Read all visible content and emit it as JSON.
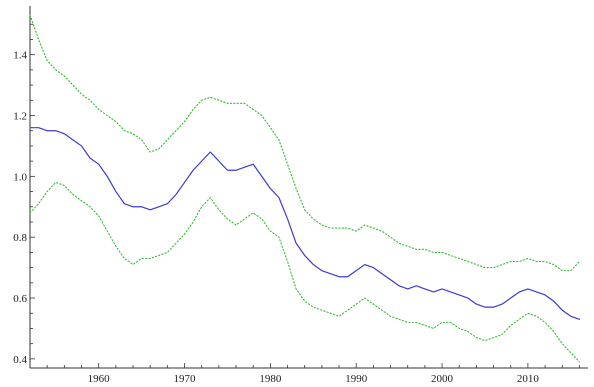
{
  "chart_data": {
    "type": "line",
    "title": "",
    "xlabel": "",
    "ylabel": "",
    "xlim": [
      1952,
      2017
    ],
    "ylim": [
      0.37,
      1.56
    ],
    "grid": false,
    "legend": "none",
    "x_ticks": [
      {
        "value": 1960,
        "label": "1960"
      },
      {
        "value": 1970,
        "label": "1970"
      },
      {
        "value": 1980,
        "label": "1980"
      },
      {
        "value": 1990,
        "label": "1990"
      },
      {
        "value": 2000,
        "label": "2000"
      },
      {
        "value": 2010,
        "label": "2010"
      }
    ],
    "y_ticks": [
      {
        "value": 0.4,
        "label": "0.4"
      },
      {
        "value": 0.6,
        "label": "0.6"
      },
      {
        "value": 0.8,
        "label": "0.8"
      },
      {
        "value": 1.0,
        "label": "1.0"
      },
      {
        "value": 1.2,
        "label": "1.2"
      },
      {
        "value": 1.4,
        "label": "1.4"
      }
    ],
    "series": [
      {
        "color": "#3b3bd8",
        "style": "solid",
        "x": [
          1952,
          1953,
          1954,
          1955,
          1956,
          1957,
          1958,
          1959,
          1960,
          1961,
          1962,
          1963,
          1964,
          1965,
          1966,
          1967,
          1968,
          1969,
          1970,
          1971,
          1972,
          1973,
          1974,
          1975,
          1976,
          1977,
          1978,
          1979,
          1980,
          1981,
          1982,
          1983,
          1984,
          1985,
          1986,
          1987,
          1988,
          1989,
          1990,
          1991,
          1992,
          1993,
          1994,
          1995,
          1996,
          1997,
          1998,
          1999,
          2000,
          2001,
          2002,
          2003,
          2004,
          2005,
          2006,
          2007,
          2008,
          2009,
          2010,
          2011,
          2012,
          2013,
          2014,
          2015,
          2016
        ],
        "y": [
          1.16,
          1.16,
          1.15,
          1.15,
          1.14,
          1.12,
          1.1,
          1.06,
          1.04,
          1.0,
          0.95,
          0.91,
          0.9,
          0.9,
          0.89,
          0.9,
          0.91,
          0.94,
          0.98,
          1.02,
          1.05,
          1.08,
          1.05,
          1.02,
          1.02,
          1.03,
          1.04,
          1.0,
          0.96,
          0.93,
          0.86,
          0.78,
          0.74,
          0.71,
          0.69,
          0.68,
          0.67,
          0.67,
          0.69,
          0.71,
          0.7,
          0.68,
          0.66,
          0.64,
          0.63,
          0.64,
          0.63,
          0.62,
          0.63,
          0.62,
          0.61,
          0.6,
          0.58,
          0.57,
          0.57,
          0.58,
          0.6,
          0.62,
          0.63,
          0.62,
          0.61,
          0.59,
          0.56,
          0.54,
          0.53
        ]
      },
      {
        "color": "#33bb33",
        "style": "dotted",
        "x": [
          1952,
          1953,
          1954,
          1955,
          1956,
          1957,
          1958,
          1959,
          1960,
          1961,
          1962,
          1963,
          1964,
          1965,
          1966,
          1967,
          1968,
          1969,
          1970,
          1971,
          1972,
          1973,
          1974,
          1975,
          1976,
          1977,
          1978,
          1979,
          1980,
          1981,
          1982,
          1983,
          1984,
          1985,
          1986,
          1987,
          1988,
          1989,
          1990,
          1991,
          1992,
          1993,
          1994,
          1995,
          1996,
          1997,
          1998,
          1999,
          2000,
          2001,
          2002,
          2003,
          2004,
          2005,
          2006,
          2007,
          2008,
          2009,
          2010,
          2011,
          2012,
          2013,
          2014,
          2015,
          2016
        ],
        "y": [
          1.53,
          1.45,
          1.38,
          1.35,
          1.33,
          1.3,
          1.27,
          1.25,
          1.22,
          1.2,
          1.18,
          1.15,
          1.14,
          1.12,
          1.08,
          1.09,
          1.12,
          1.15,
          1.18,
          1.22,
          1.25,
          1.26,
          1.25,
          1.24,
          1.24,
          1.24,
          1.22,
          1.2,
          1.16,
          1.12,
          1.04,
          0.96,
          0.89,
          0.86,
          0.84,
          0.83,
          0.83,
          0.83,
          0.82,
          0.84,
          0.83,
          0.82,
          0.8,
          0.78,
          0.77,
          0.76,
          0.76,
          0.75,
          0.75,
          0.74,
          0.73,
          0.72,
          0.71,
          0.7,
          0.7,
          0.71,
          0.72,
          0.72,
          0.73,
          0.72,
          0.72,
          0.71,
          0.69,
          0.69,
          0.72
        ]
      },
      {
        "color": "#33bb33",
        "style": "dotted",
        "x": [
          1952,
          1953,
          1954,
          1955,
          1956,
          1957,
          1958,
          1959,
          1960,
          1961,
          1962,
          1963,
          1964,
          1965,
          1966,
          1967,
          1968,
          1969,
          1970,
          1971,
          1972,
          1973,
          1974,
          1975,
          1976,
          1977,
          1978,
          1979,
          1980,
          1981,
          1982,
          1983,
          1984,
          1985,
          1986,
          1987,
          1988,
          1989,
          1990,
          1991,
          1992,
          1993,
          1994,
          1995,
          1996,
          1997,
          1998,
          1999,
          2000,
          2001,
          2002,
          2003,
          2004,
          2005,
          2006,
          2007,
          2008,
          2009,
          2010,
          2011,
          2012,
          2013,
          2014,
          2015,
          2016
        ],
        "y": [
          0.88,
          0.91,
          0.95,
          0.98,
          0.97,
          0.94,
          0.92,
          0.9,
          0.87,
          0.82,
          0.77,
          0.73,
          0.71,
          0.73,
          0.73,
          0.74,
          0.75,
          0.78,
          0.81,
          0.85,
          0.9,
          0.93,
          0.89,
          0.86,
          0.84,
          0.86,
          0.88,
          0.86,
          0.82,
          0.8,
          0.72,
          0.63,
          0.59,
          0.57,
          0.56,
          0.55,
          0.54,
          0.56,
          0.58,
          0.6,
          0.58,
          0.56,
          0.54,
          0.53,
          0.52,
          0.52,
          0.51,
          0.5,
          0.52,
          0.52,
          0.5,
          0.49,
          0.47,
          0.46,
          0.47,
          0.48,
          0.51,
          0.53,
          0.55,
          0.54,
          0.52,
          0.49,
          0.45,
          0.42,
          0.39
        ]
      }
    ]
  }
}
